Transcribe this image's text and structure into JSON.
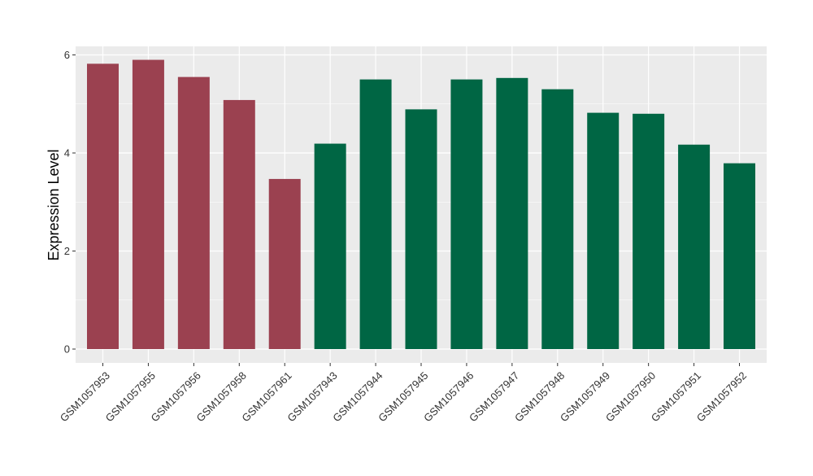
{
  "chart_data": {
    "type": "bar",
    "title": "",
    "xlabel": "",
    "ylabel": "Expression Level",
    "ylim": [
      0,
      6
    ],
    "yticks": [
      0,
      2,
      4,
      6
    ],
    "grid": true,
    "legend": "none",
    "colors": {
      "group_a": "#9b4150",
      "group_b": "#006644",
      "panel_background": "#ebebeb",
      "gridline": "#ffffff"
    },
    "categories": [
      "GSM1057953",
      "GSM1057955",
      "GSM1057956",
      "GSM1057958",
      "GSM1057961",
      "GSM1057943",
      "GSM1057944",
      "GSM1057945",
      "GSM1057946",
      "GSM1057947",
      "GSM1057948",
      "GSM1057949",
      "GSM1057950",
      "GSM1057951",
      "GSM1057952"
    ],
    "values": [
      5.82,
      5.9,
      5.55,
      5.08,
      3.47,
      4.19,
      5.5,
      4.89,
      5.5,
      5.53,
      5.3,
      4.82,
      4.8,
      4.17,
      3.79
    ],
    "bar_groups": [
      "group_a",
      "group_a",
      "group_a",
      "group_a",
      "group_a",
      "group_b",
      "group_b",
      "group_b",
      "group_b",
      "group_b",
      "group_b",
      "group_b",
      "group_b",
      "group_b",
      "group_b"
    ]
  }
}
